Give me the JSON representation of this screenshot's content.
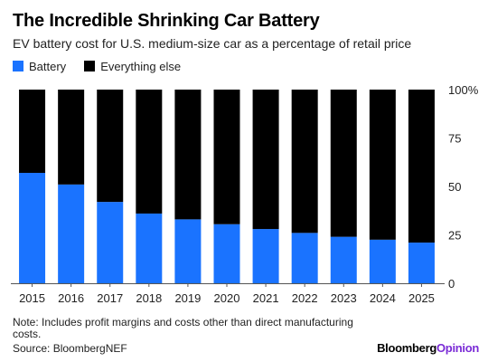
{
  "chart_data": {
    "type": "bar",
    "stacked": true,
    "title": "The Incredible Shrinking Car Battery",
    "subtitle": "EV battery cost for U.S. medium-size car as a percentage of retail price",
    "categories": [
      "2015",
      "2016",
      "2017",
      "2018",
      "2019",
      "2020",
      "2021",
      "2022",
      "2023",
      "2024",
      "2025"
    ],
    "series": [
      {
        "name": "Battery",
        "color": "#1a73ff",
        "values": [
          57,
          51,
          42,
          36,
          33,
          30.5,
          28,
          26,
          24,
          22.5,
          21
        ]
      },
      {
        "name": "Everything else",
        "color": "#000000",
        "values": [
          43,
          49,
          58,
          64,
          67,
          69.5,
          72,
          74,
          76,
          77.5,
          79
        ]
      }
    ],
    "ylim": [
      0,
      100
    ],
    "yticks": [
      {
        "value": 0,
        "label": "0"
      },
      {
        "value": 25,
        "label": "25"
      },
      {
        "value": 50,
        "label": "50"
      },
      {
        "value": 75,
        "label": "75"
      },
      {
        "value": 100,
        "label": "100%"
      }
    ],
    "ytick_position": "right",
    "grid": false,
    "legend_position": "top-left",
    "note": "Note: Includes profit margins and costs other than direct manufacturing costs.",
    "source": "Source: BloombergNEF"
  },
  "brand": {
    "part1": "Bloomberg",
    "part2": "Opinion",
    "part1_color": "#000000",
    "part2_color": "#7a2bd6"
  }
}
